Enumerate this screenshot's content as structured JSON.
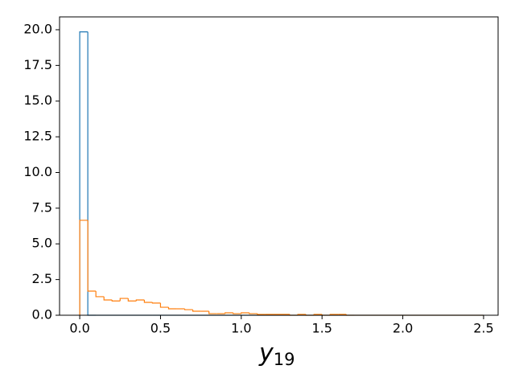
{
  "chart_data": {
    "type": "histogram",
    "histtype": "step",
    "xlabel": {
      "main": "y",
      "subscript": "19"
    },
    "bins": [
      0,
      0.05,
      0.1,
      0.15,
      0.2,
      0.25,
      0.3,
      0.35,
      0.4,
      0.45,
      0.5,
      0.55,
      0.6,
      0.65,
      0.7,
      0.75,
      0.8,
      0.85,
      0.9,
      0.95,
      1.0,
      1.05,
      1.1,
      1.15,
      1.2,
      1.25,
      1.3,
      1.35,
      1.4,
      1.45,
      1.5,
      1.55,
      1.6,
      1.65,
      1.7,
      1.75,
      1.8,
      1.85,
      1.9,
      1.95,
      2.0,
      2.05,
      2.1,
      2.15,
      2.2,
      2.25,
      2.3,
      2.35,
      2.4,
      2.45,
      2.5
    ],
    "series": [
      {
        "color": "#1f77b4",
        "values": [
          19.85,
          0,
          0,
          0,
          0,
          0,
          0,
          0,
          0,
          0,
          0,
          0,
          0,
          0,
          0,
          0,
          0,
          0,
          0,
          0,
          0,
          0,
          0,
          0,
          0,
          0,
          0,
          0,
          0,
          0,
          0,
          0,
          0,
          0,
          0,
          0,
          0,
          0,
          0,
          0,
          0,
          0,
          0,
          0,
          0,
          0,
          0,
          0,
          0,
          0
        ]
      },
      {
        "color": "#ff7f0e",
        "values": [
          6.65,
          1.69,
          1.3,
          1.07,
          1.0,
          1.18,
          1.0,
          1.07,
          0.9,
          0.85,
          0.56,
          0.45,
          0.45,
          0.39,
          0.28,
          0.28,
          0.11,
          0.11,
          0.17,
          0.11,
          0.17,
          0.11,
          0.06,
          0.06,
          0.06,
          0.06,
          0,
          0.06,
          0,
          0.06,
          0,
          0.06,
          0.06,
          0,
          0,
          0,
          0,
          0,
          0,
          0,
          0,
          0,
          0,
          0,
          0,
          0,
          0,
          0,
          0,
          0
        ]
      }
    ],
    "xlim": [
      -0.125,
      2.59
    ],
    "ylim": [
      0,
      20.9
    ],
    "xticks": [
      {
        "value": 0,
        "label": "0.0"
      },
      {
        "value": 0.5,
        "label": "0.5"
      },
      {
        "value": 1,
        "label": "1.0"
      },
      {
        "value": 1.5,
        "label": "1.5"
      },
      {
        "value": 2,
        "label": "2.0"
      },
      {
        "value": 2.5,
        "label": "2.5"
      }
    ],
    "yticks": [
      {
        "value": 0,
        "label": "0.0"
      },
      {
        "value": 2.5,
        "label": "2.5"
      },
      {
        "value": 5,
        "label": "5.0"
      },
      {
        "value": 7.5,
        "label": "7.5"
      },
      {
        "value": 10,
        "label": "10.0"
      },
      {
        "value": 12.5,
        "label": "12.5"
      },
      {
        "value": 15,
        "label": "15.0"
      },
      {
        "value": 17.5,
        "label": "17.5"
      },
      {
        "value": 20,
        "label": "20.0"
      }
    ],
    "grid": false
  }
}
